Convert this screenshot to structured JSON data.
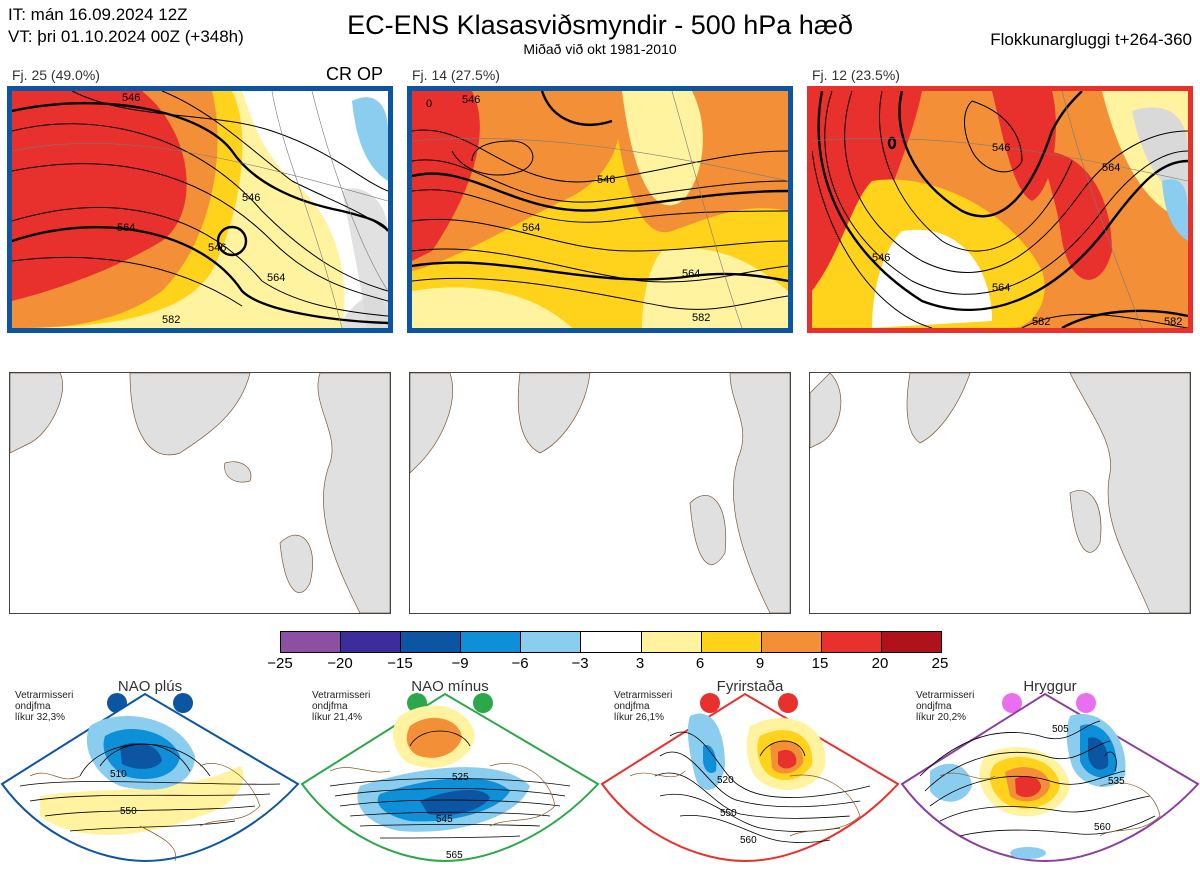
{
  "header": {
    "it_line": "IT: mán 16.09.2024 12Z",
    "vt_line": "VT: þri 01.10.2024 00Z  (+348h)",
    "title": "EC-ENS Klasasviðsmyndir - 500 hPa hæð",
    "subtitle": "Miðað við okt 1981-2010",
    "window": "Flokkunargluggi t+264-360"
  },
  "clusters": [
    {
      "label": "Fj. 25 (49.0%)",
      "tag": "CR OP",
      "frame_color": "#0b55a3",
      "contours": [
        "546",
        "546",
        "546",
        "564",
        "564",
        "582"
      ]
    },
    {
      "label": "Fj. 14 (27.5%)",
      "tag": "",
      "frame_color": "#0b55a3",
      "contours": [
        "0",
        "546",
        "546",
        "564",
        "564",
        "582"
      ]
    },
    {
      "label": "Fj. 12 (23.5%)",
      "tag": "",
      "frame_color": "#e8312c",
      "contours": [
        "546",
        "546",
        "564",
        "564",
        "582",
        "582"
      ]
    }
  ],
  "colorbar": {
    "ticks": [
      "−25",
      "−20",
      "−15",
      "−9",
      "−6",
      "−3",
      "3",
      "6",
      "9",
      "15",
      "20",
      "25"
    ],
    "colors": [
      "#8c4fa3",
      "#3d2c9b",
      "#0b55a3",
      "#0e90d8",
      "#8acdee",
      "#ffffff",
      "#fff3a0",
      "#ffd21c",
      "#f39037",
      "#e8312c",
      "#b0121b"
    ]
  },
  "regimes": [
    {
      "name": "NAO plús",
      "note": [
        "Vetrarmisseri",
        "ondjfma",
        "líkur 32,3%"
      ],
      "color": "#0b55a3",
      "contours": [
        "510",
        "550"
      ]
    },
    {
      "name": "NAO mínus",
      "note": [
        "Vetrarmisseri",
        "ondjfma",
        "líkur 21,4%"
      ],
      "color": "#2ca84a",
      "contours": [
        "525",
        "545",
        "565"
      ]
    },
    {
      "name": "Fyrirstaða",
      "note": [
        "Vetrarmisseri",
        "ondjfma",
        "líkur 26,1%"
      ],
      "color": "#e8312c",
      "contours": [
        "520",
        "550",
        "560"
      ]
    },
    {
      "name": "Hryggur",
      "note": [
        "Vetrarmisseri",
        "ondjfma",
        "líkur 20,2%"
      ],
      "color": "#8c3ea0",
      "contours": [
        "505",
        "535",
        "560"
      ]
    }
  ]
}
